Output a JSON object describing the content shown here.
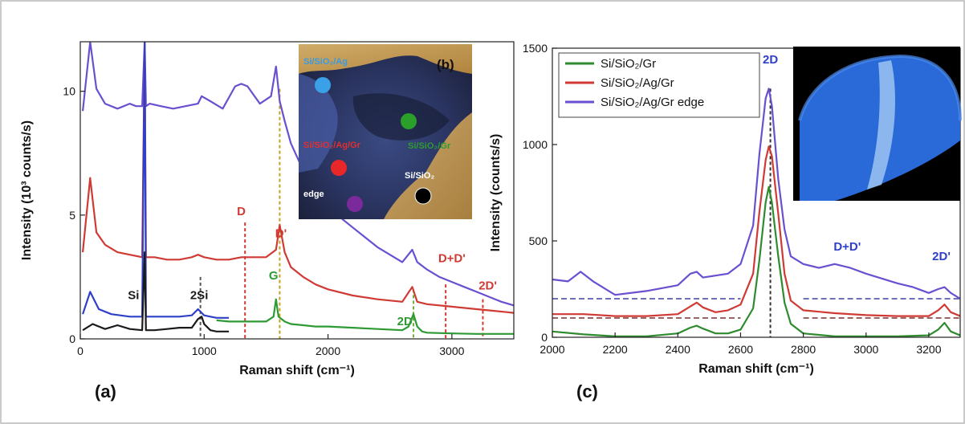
{
  "chart_data": [
    {
      "panel": "(a)",
      "type": "line",
      "xlabel": "Raman shift (cm⁻¹)",
      "ylabel": "Intensity (10³ counts/s)",
      "xlim": [
        0,
        3500
      ],
      "ylim": [
        0,
        12
      ],
      "xticks": [
        0,
        1000,
        2000,
        3000
      ],
      "yticks": [
        0,
        5,
        10
      ],
      "grid": false,
      "series": [
        {
          "color": "#6a4fd0",
          "x": [
            20,
            80,
            130,
            200,
            300,
            400,
            450,
            500,
            520,
            530,
            560,
            650,
            750,
            850,
            950,
            980,
            1050,
            1150,
            1250,
            1300,
            1350,
            1450,
            1540,
            1580,
            1610,
            1650,
            1700,
            1800,
            1900,
            2000,
            2100,
            2200,
            2300,
            2400,
            2500,
            2600,
            2680,
            2720,
            2800,
            2900,
            3000,
            3100,
            3200,
            3300,
            3400,
            3500
          ],
          "y": [
            9.2,
            12.0,
            10.1,
            9.5,
            9.3,
            9.5,
            9.4,
            9.4,
            12.0,
            9.4,
            9.5,
            9.4,
            9.3,
            9.4,
            9.5,
            9.8,
            9.6,
            9.3,
            10.2,
            10.3,
            10.2,
            9.5,
            9.8,
            11.0,
            9.6,
            8.8,
            7.9,
            6.8,
            6.0,
            5.4,
            4.9,
            4.5,
            4.1,
            3.7,
            3.4,
            3.1,
            3.6,
            3.1,
            2.8,
            2.5,
            2.3,
            2.1,
            1.9,
            1.7,
            1.5,
            1.35
          ]
        },
        {
          "color": "#d03a34",
          "x": [
            20,
            80,
            130,
            200,
            300,
            400,
            500,
            520,
            530,
            600,
            700,
            800,
            900,
            950,
            1000,
            1100,
            1200,
            1300,
            1400,
            1500,
            1580,
            1610,
            1650,
            1700,
            1800,
            1900,
            2000,
            2200,
            2400,
            2600,
            2680,
            2720,
            2800,
            3000,
            3200,
            3300,
            3500
          ],
          "y": [
            3.5,
            6.5,
            4.3,
            3.8,
            3.5,
            3.4,
            3.3,
            12.0,
            3.3,
            3.3,
            3.2,
            3.2,
            3.3,
            3.4,
            3.3,
            3.2,
            3.2,
            3.3,
            3.3,
            3.3,
            3.6,
            4.6,
            3.5,
            2.9,
            2.5,
            2.2,
            2.0,
            1.75,
            1.6,
            1.5,
            2.1,
            1.5,
            1.4,
            1.3,
            1.2,
            1.15,
            1.05
          ]
        },
        {
          "color": "#2f40c8",
          "x": [
            20,
            80,
            150,
            250,
            400,
            500,
            520,
            530,
            600,
            700,
            800,
            900,
            950,
            980,
            1000,
            1050,
            1100,
            1200
          ],
          "y": [
            1.0,
            1.9,
            1.2,
            1.0,
            0.9,
            0.9,
            12.0,
            0.9,
            0.9,
            0.9,
            0.9,
            0.95,
            1.2,
            1.05,
            0.95,
            0.9,
            0.85,
            0.85
          ]
        },
        {
          "color": "#2e9a34",
          "x": [
            1100,
            1200,
            1300,
            1400,
            1500,
            1560,
            1580,
            1600,
            1650,
            1700,
            1800,
            1900,
            2000,
            2200,
            2400,
            2600,
            2650,
            2690,
            2720,
            2760,
            2800,
            3000,
            3200,
            3300,
            3500
          ],
          "y": [
            0.75,
            0.7,
            0.7,
            0.7,
            0.7,
            0.9,
            1.6,
            0.9,
            0.7,
            0.6,
            0.55,
            0.5,
            0.5,
            0.45,
            0.4,
            0.35,
            0.5,
            1.0,
            0.5,
            0.3,
            0.25,
            0.22,
            0.2,
            0.2,
            0.2
          ]
        },
        {
          "color": "#1a1a1a",
          "x": [
            20,
            100,
            200,
            300,
            400,
            500,
            520,
            530,
            600,
            700,
            800,
            900,
            950,
            980,
            1000,
            1050,
            1100,
            1200
          ],
          "y": [
            0.35,
            0.6,
            0.4,
            0.55,
            0.4,
            0.35,
            3.5,
            0.35,
            0.35,
            0.4,
            0.45,
            0.45,
            0.8,
            0.9,
            0.6,
            0.35,
            0.3,
            0.3
          ]
        }
      ],
      "annotations": [
        {
          "text": "D",
          "x": 1300,
          "y": 5.0,
          "color": "#d03a34"
        },
        {
          "text": "D'",
          "x": 1620,
          "y": 4.1,
          "color": "#d03a34"
        },
        {
          "text": "G",
          "x": 1560,
          "y": 2.4,
          "color": "#2e9a34"
        },
        {
          "text": "2D",
          "x": 2620,
          "y": 0.55,
          "color": "#2e9a34"
        },
        {
          "text": "D+D'",
          "x": 3000,
          "y": 3.1,
          "color": "#d03a34"
        },
        {
          "text": "2D'",
          "x": 3290,
          "y": 2.0,
          "color": "#d03a34"
        },
        {
          "text": "Si",
          "x": 430,
          "y": 1.6,
          "color": "#1a1a1a"
        },
        {
          "text": "2Si",
          "x": 960,
          "y": 1.6,
          "color": "#1a1a1a"
        }
      ],
      "dashed_markers": [
        {
          "x": 970,
          "color": "#555555"
        },
        {
          "x": 1330,
          "color": "#d03a34"
        },
        {
          "x": 1610,
          "color": "#c8a020"
        },
        {
          "x": 2690,
          "color": "#6fae3a"
        },
        {
          "x": 2950,
          "color": "#d03a34"
        },
        {
          "x": 3250,
          "color": "#d03a34"
        }
      ]
    },
    {
      "panel": "(c)",
      "type": "line",
      "xlabel": "Raman shift (cm⁻¹)",
      "ylabel": "Intensity (counts/s)",
      "xlim": [
        2000,
        3300
      ],
      "ylim": [
        0,
        1500
      ],
      "xticks": [
        2000,
        2200,
        2400,
        2600,
        2800,
        3000,
        3200
      ],
      "yticks": [
        0,
        500,
        1000,
        1500
      ],
      "grid": false,
      "legend": "top-left",
      "series": [
        {
          "name": "Si/SiO₂/Gr",
          "color": "#2e8b2e",
          "x": [
            2000,
            2100,
            2200,
            2300,
            2400,
            2440,
            2460,
            2480,
            2520,
            2560,
            2600,
            2640,
            2660,
            2680,
            2690,
            2700,
            2720,
            2740,
            2760,
            2800,
            2900,
            3000,
            3100,
            3200,
            3230,
            3250,
            3270,
            3300
          ],
          "y": [
            30,
            15,
            5,
            5,
            20,
            50,
            60,
            45,
            20,
            20,
            40,
            150,
            400,
            700,
            780,
            700,
            420,
            180,
            70,
            20,
            5,
            5,
            5,
            10,
            40,
            75,
            30,
            10
          ]
        },
        {
          "name": "Si/SiO₂/Ag/Gr",
          "color": "#d03a34",
          "x": [
            2000,
            2100,
            2200,
            2300,
            2400,
            2440,
            2460,
            2480,
            2520,
            2560,
            2600,
            2640,
            2660,
            2680,
            2690,
            2700,
            2720,
            2740,
            2760,
            2800,
            2900,
            3000,
            3100,
            3200,
            3230,
            3250,
            3270,
            3300
          ],
          "y": [
            120,
            120,
            110,
            110,
            120,
            160,
            180,
            155,
            130,
            140,
            170,
            330,
            650,
            920,
            990,
            940,
            640,
            330,
            190,
            140,
            125,
            115,
            110,
            110,
            140,
            170,
            130,
            110
          ]
        },
        {
          "name": "Si/SiO₂/Ag/Gr edge",
          "color": "#6a4fd0",
          "x": [
            2000,
            2050,
            2090,
            2130,
            2200,
            2300,
            2400,
            2440,
            2460,
            2480,
            2520,
            2560,
            2600,
            2640,
            2660,
            2680,
            2690,
            2700,
            2720,
            2740,
            2760,
            2800,
            2850,
            2900,
            2950,
            3000,
            3100,
            3150,
            3200,
            3230,
            3250,
            3270,
            3300
          ],
          "y": [
            300,
            290,
            340,
            290,
            220,
            240,
            270,
            330,
            340,
            310,
            320,
            330,
            380,
            580,
            950,
            1240,
            1290,
            1200,
            820,
            560,
            420,
            380,
            360,
            380,
            360,
            330,
            280,
            260,
            230,
            250,
            260,
            230,
            200
          ]
        }
      ],
      "annotations": [
        {
          "text": "2D",
          "x": 2695,
          "y": 1420,
          "color": "#2f40c8"
        },
        {
          "text": "D+D'",
          "x": 2940,
          "y": 450,
          "color": "#2f40c8"
        },
        {
          "text": "2D'",
          "x": 3240,
          "y": 400,
          "color": "#2f40c8"
        }
      ],
      "dashed_levels": [
        {
          "y": 200,
          "color": "#4040a0",
          "segments": [
            [
              2000,
              2600
            ],
            [
              2800,
              3300
            ]
          ]
        },
        {
          "y": 100,
          "color": "#7a3030",
          "segments": [
            [
              2000,
              2600
            ],
            [
              2800,
              3300
            ]
          ]
        }
      ],
      "dashed_markers": [
        {
          "x": 2695,
          "color": "#333333"
        }
      ]
    }
  ],
  "panels": {
    "a_label": "(a)",
    "b_label": "(b)",
    "c_label": "(c)"
  },
  "inset_b": {
    "labels": [
      {
        "text": "Si/SiO₂/Ag",
        "color": "#3a9ae0",
        "dot": "#3aa0e8"
      },
      {
        "text": "Si/SiO₂/Gr",
        "color": "#2e9a34",
        "dot": "#2aa02a"
      },
      {
        "text": "Si/SiO₂/Ag/Gr",
        "color": "#e03030",
        "dot": "#e82828"
      },
      {
        "text": "Si/SiO₂",
        "color": "#ffffff",
        "dot": "#000000"
      },
      {
        "text": "edge",
        "color": "#ffffff",
        "dot": "#7a2a9a"
      }
    ]
  }
}
